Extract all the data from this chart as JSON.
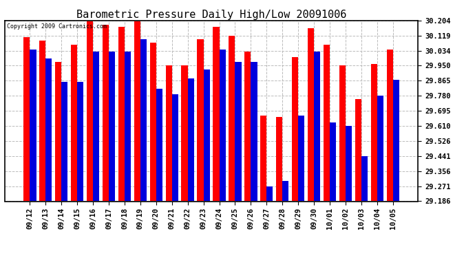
{
  "title": "Barometric Pressure Daily High/Low 20091006",
  "copyright": "Copyright 2009 Cartronics.com",
  "dates": [
    "09/12",
    "09/13",
    "09/14",
    "09/15",
    "09/16",
    "09/17",
    "09/18",
    "09/19",
    "09/20",
    "09/21",
    "09/22",
    "09/23",
    "09/24",
    "09/25",
    "09/26",
    "09/27",
    "09/28",
    "09/29",
    "09/30",
    "10/01",
    "10/02",
    "10/03",
    "10/04",
    "10/05"
  ],
  "highs": [
    30.11,
    30.09,
    29.97,
    30.07,
    30.2,
    30.18,
    30.17,
    30.2,
    30.08,
    29.95,
    29.95,
    30.1,
    30.17,
    30.12,
    30.03,
    29.67,
    29.66,
    30.0,
    30.16,
    30.07,
    29.95,
    29.76,
    29.96,
    30.04
  ],
  "lows": [
    30.04,
    29.99,
    29.86,
    29.86,
    30.03,
    30.03,
    30.03,
    30.1,
    29.82,
    29.79,
    29.88,
    29.93,
    30.04,
    29.97,
    29.97,
    29.27,
    29.3,
    29.67,
    30.03,
    29.63,
    29.61,
    29.44,
    29.78,
    29.87
  ],
  "ymin": 29.186,
  "ymax": 30.204,
  "yticks": [
    30.204,
    30.119,
    30.034,
    29.95,
    29.865,
    29.78,
    29.695,
    29.61,
    29.526,
    29.441,
    29.356,
    29.271,
    29.186
  ],
  "high_color": "#FF0000",
  "low_color": "#0000DD",
  "bg_color": "#FFFFFF",
  "grid_color": "#BBBBBB",
  "title_fontsize": 11,
  "tick_fontsize": 7.5,
  "bar_width": 0.4
}
